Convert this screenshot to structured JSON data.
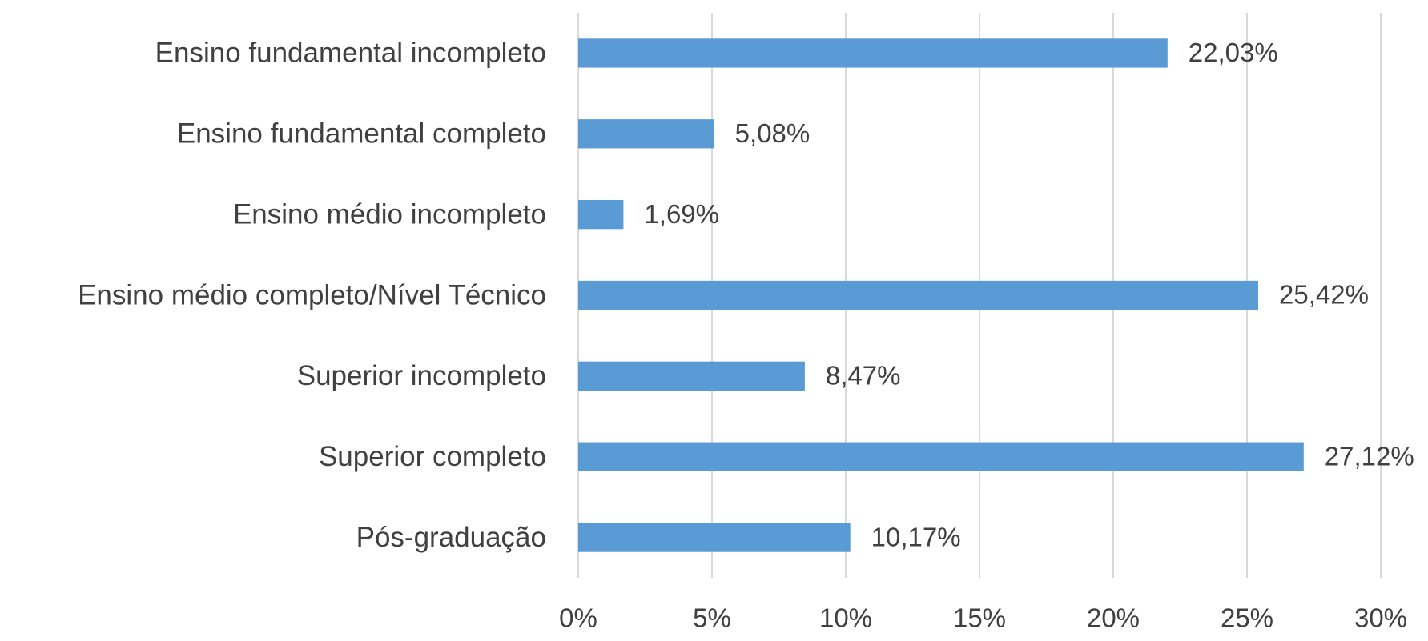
{
  "chart_data": {
    "type": "bar",
    "orientation": "horizontal",
    "categories": [
      "Ensino fundamental incompleto",
      "Ensino fundamental completo",
      "Ensino médio incompleto",
      "Ensino médio completo/Nível Técnico",
      "Superior incompleto",
      "Superior completo",
      "Pós-graduação"
    ],
    "values": [
      22.03,
      5.08,
      1.69,
      25.42,
      8.47,
      27.12,
      10.17
    ],
    "value_labels": [
      "22,03%",
      "5,08%",
      "1,69%",
      "25,42%",
      "8,47%",
      "27,12%",
      "10,17%"
    ],
    "color": "#5b9bd5",
    "xlim": [
      0,
      30
    ],
    "xticks": [
      {
        "value": 0,
        "label": "0%"
      },
      {
        "value": 5,
        "label": "5%"
      },
      {
        "value": 10,
        "label": "10%"
      },
      {
        "value": 15,
        "label": "15%"
      },
      {
        "value": 20,
        "label": "20%"
      },
      {
        "value": 25,
        "label": "25%"
      },
      {
        "value": 30,
        "label": "30%"
      }
    ],
    "grid": true
  }
}
